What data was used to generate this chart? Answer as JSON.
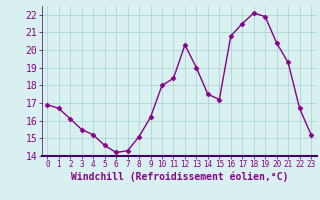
{
  "x": [
    0,
    1,
    2,
    3,
    4,
    5,
    6,
    7,
    8,
    9,
    10,
    11,
    12,
    13,
    14,
    15,
    16,
    17,
    18,
    19,
    20,
    21,
    22,
    23
  ],
  "y": [
    16.9,
    16.7,
    16.1,
    15.5,
    15.2,
    14.6,
    14.2,
    14.3,
    15.1,
    16.2,
    18.0,
    18.4,
    20.3,
    19.0,
    17.5,
    17.2,
    20.8,
    21.5,
    22.1,
    21.9,
    20.4,
    19.3,
    16.7,
    15.2
  ],
  "line_color": "#880088",
  "marker": "D",
  "marker_size": 2.5,
  "bg_color": "#d8f0f0",
  "grid_color": "#aacece",
  "xlabel": "Windchill (Refroidissement éolien,°C)",
  "ylim": [
    14,
    22.5
  ],
  "xlim": [
    -0.5,
    23.5
  ],
  "yticks": [
    14,
    15,
    16,
    17,
    18,
    19,
    20,
    21,
    22
  ],
  "xticks": [
    0,
    1,
    2,
    3,
    4,
    5,
    6,
    7,
    8,
    9,
    10,
    11,
    12,
    13,
    14,
    15,
    16,
    17,
    18,
    19,
    20,
    21,
    22,
    23
  ],
  "tick_label_color": "#880088",
  "ytick_label_size": 7,
  "xtick_label_size": 5.5,
  "xlabel_fontsize": 7,
  "spine_color": "#440066",
  "linewidth": 1.0
}
